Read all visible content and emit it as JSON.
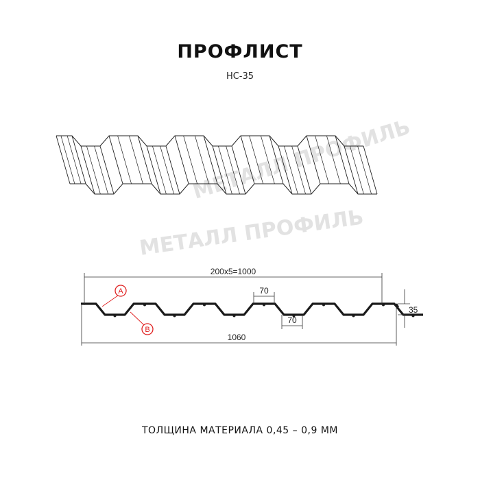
{
  "title": "ПРОФЛИСТ",
  "subtitle": "НС-35",
  "watermark": "МЕТАЛЛ ПРОФИЛЬ",
  "dimensions": {
    "pitch": "200x5=1000",
    "top_width": "70",
    "bottom_width": "70",
    "height": "35",
    "total_width": "1060"
  },
  "markers": {
    "a": "A",
    "b": "B"
  },
  "footer": "ТОЛЩИНА МАТЕРИАЛА 0,45 – 0,9 ММ",
  "colors": {
    "line": "#1a1a1a",
    "marker": "#e02020",
    "watermark": "#e2e2e2"
  }
}
